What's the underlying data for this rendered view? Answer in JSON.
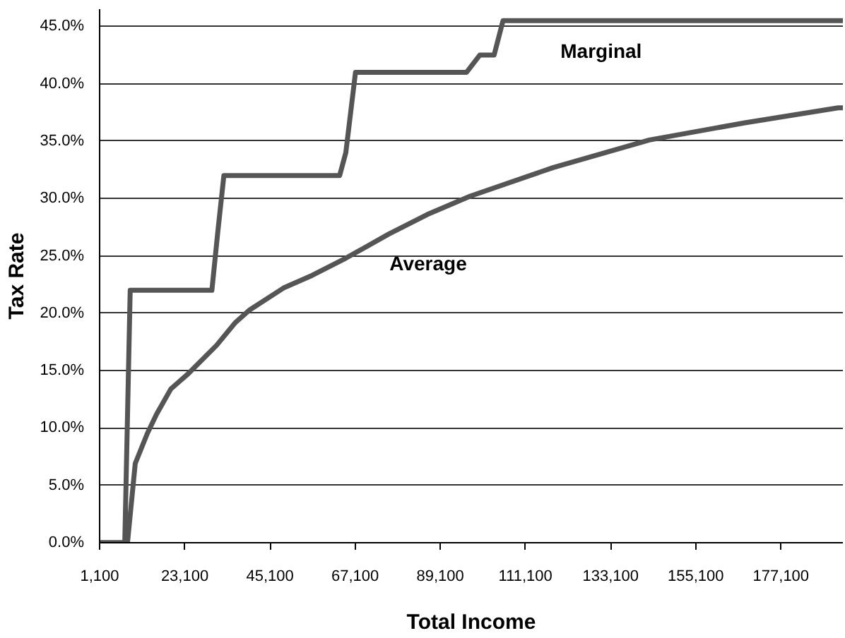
{
  "chart_data": {
    "type": "line",
    "xlabel": "Total Income",
    "ylabel": "Tax Rate",
    "xlim": [
      1100,
      193100
    ],
    "xticks": [
      {
        "value": 1100,
        "label": "1,100"
      },
      {
        "value": 23100,
        "label": "23,100"
      },
      {
        "value": 45100,
        "label": "45,100"
      },
      {
        "value": 67100,
        "label": "67,100"
      },
      {
        "value": 89100,
        "label": "89,100"
      },
      {
        "value": 111100,
        "label": "111,100"
      },
      {
        "value": 133100,
        "label": "133,100"
      },
      {
        "value": 155100,
        "label": "155,100"
      },
      {
        "value": 177100,
        "label": "177,100"
      }
    ],
    "ylim": [
      0,
      46.5
    ],
    "yticks": [
      {
        "value": 0,
        "label": "0.0%"
      },
      {
        "value": 5,
        "label": "5.0%"
      },
      {
        "value": 10,
        "label": "10.0%"
      },
      {
        "value": 15,
        "label": "15.0%"
      },
      {
        "value": 20,
        "label": "20.0%"
      },
      {
        "value": 25,
        "label": "25.0%"
      },
      {
        "value": 30,
        "label": "30.0%"
      },
      {
        "value": 35,
        "label": "35.0%"
      },
      {
        "value": 40,
        "label": "40.0%"
      },
      {
        "value": 45,
        "label": "45.0%"
      }
    ],
    "grid": "y",
    "legend": false,
    "line_style": "solid",
    "series": [
      {
        "name": "Marginal",
        "color": "#555555",
        "x": [
          1100,
          7600,
          9000,
          30100,
          31600,
          33200,
          63100,
          64700,
          67200,
          95900,
          99300,
          103000,
          105300,
          193100
        ],
        "values": [
          0,
          0,
          22,
          22,
          27,
          32,
          32,
          34,
          41,
          41,
          42.5,
          42.5,
          45.5,
          45.5
        ]
      },
      {
        "name": "Average",
        "color": "#555555",
        "x": [
          1100,
          8300,
          10300,
          13400,
          15800,
          19500,
          23900,
          31300,
          36200,
          39900,
          48600,
          56000,
          64700,
          75800,
          85700,
          96800,
          118300,
          143100,
          167800,
          191900,
          193100
        ],
        "values": [
          0,
          0,
          6.9,
          9.5,
          11.2,
          13.4,
          14.7,
          17.2,
          19.2,
          20.3,
          22.2,
          23.3,
          24.8,
          26.9,
          28.6,
          30.2,
          32.7,
          35.1,
          36.6,
          37.9,
          37.9
        ]
      }
    ]
  }
}
